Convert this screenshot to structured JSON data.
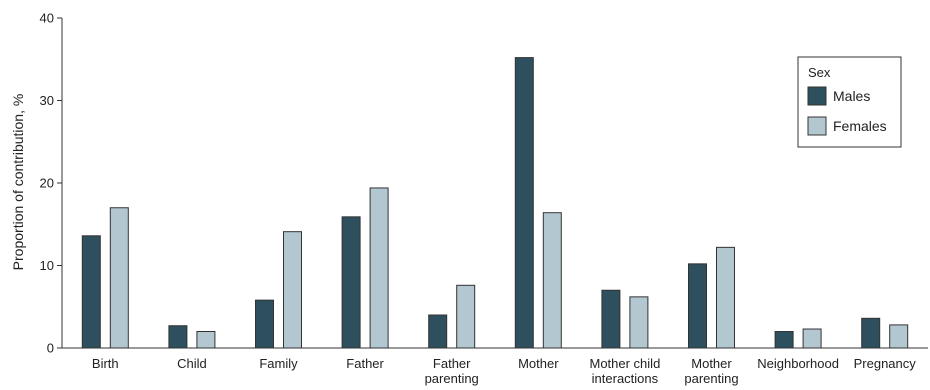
{
  "chart_data": {
    "type": "bar",
    "title": "",
    "xlabel": "",
    "ylabel": "Proportion of contribution, %",
    "ylim": [
      0,
      40
    ],
    "yticks": [
      0,
      10,
      20,
      30,
      40
    ],
    "categories": [
      [
        "Birth"
      ],
      [
        "Child"
      ],
      [
        "Family"
      ],
      [
        "Father"
      ],
      [
        "Father",
        "parenting"
      ],
      [
        "Mother"
      ],
      [
        "Mother child",
        "interactions"
      ],
      [
        "Mother",
        "parenting"
      ],
      [
        "Neighborhood"
      ],
      [
        "Pregnancy"
      ]
    ],
    "series": [
      {
        "name": "Males",
        "color": "#2e4f5e",
        "values": [
          13.6,
          2.7,
          5.8,
          15.9,
          4.0,
          35.2,
          7.0,
          10.2,
          2.0,
          3.6
        ]
      },
      {
        "name": "Females",
        "color": "#b3c7d1",
        "values": [
          17.0,
          2.0,
          14.1,
          19.4,
          7.6,
          16.4,
          6.2,
          12.2,
          2.3,
          2.8
        ]
      }
    ],
    "legend": {
      "title": "Sex",
      "placement": "top-right"
    },
    "grid": false
  }
}
